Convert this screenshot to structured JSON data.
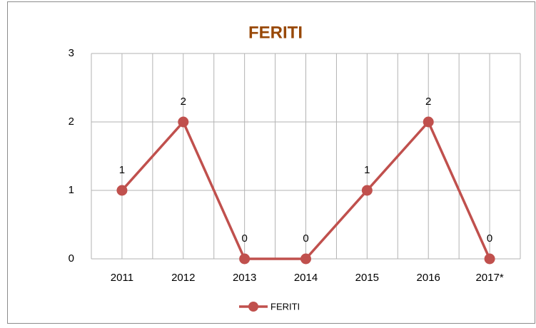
{
  "chart_data": {
    "type": "line",
    "title": "FERITI",
    "categories": [
      "2011",
      "2012",
      "2013",
      "2014",
      "2015",
      "2016",
      "2017*"
    ],
    "series": [
      {
        "name": "FERITI",
        "color": "#c0504d",
        "values": [
          1,
          2,
          0,
          0,
          1,
          2,
          0
        ]
      }
    ],
    "ylim": [
      0,
      3
    ],
    "yticks": [
      0,
      1,
      2,
      3
    ],
    "grid": true,
    "legend": "bottom",
    "title_color": "#984807"
  }
}
